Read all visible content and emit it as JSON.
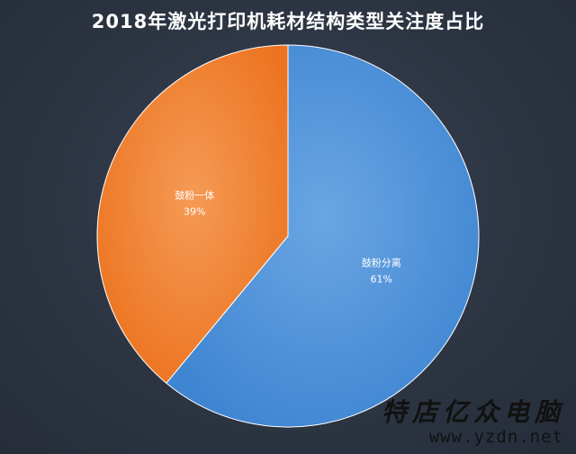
{
  "chart_data": {
    "type": "pie",
    "title": "2018年激光打印机耗材结构类型关注度占比",
    "slices": [
      {
        "label": "鼓粉分离",
        "value": 61,
        "value_label": "61%",
        "color": "#4a90d9"
      },
      {
        "label": "鼓粉一体",
        "value": 39,
        "value_label": "39%",
        "color": "#f07f2a"
      }
    ],
    "legend": "none"
  },
  "watermark": {
    "name": "特店亿众电脑",
    "url": "www.yzdn.net"
  }
}
